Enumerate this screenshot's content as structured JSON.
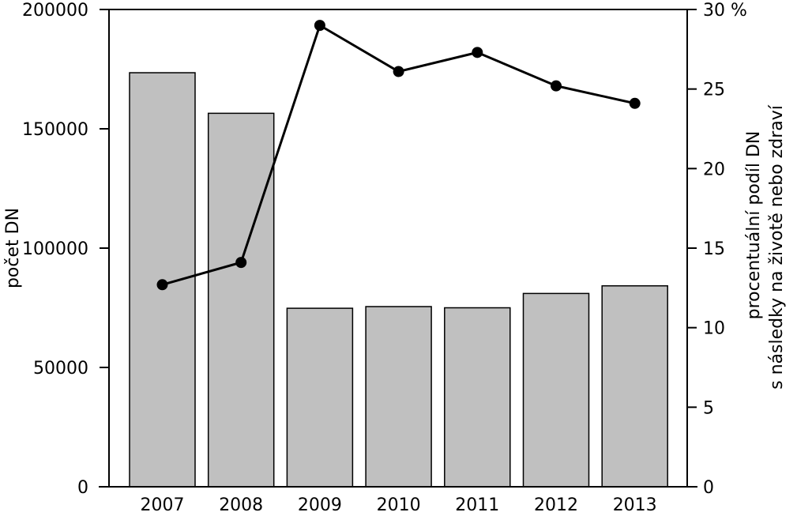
{
  "chart_data": {
    "type": "bar",
    "categories": [
      "2007",
      "2008",
      "2009",
      "2010",
      "2011",
      "2012",
      "2013"
    ],
    "series": [
      {
        "type": "bar",
        "axis": "left",
        "values": [
          173500,
          156500,
          74800,
          75500,
          75000,
          81000,
          84200
        ],
        "color": "#c0c0c0"
      },
      {
        "type": "line",
        "axis": "right",
        "values": [
          12.7,
          14.1,
          29.0,
          26.1,
          27.3,
          25.2,
          24.1
        ],
        "color": "#000000"
      }
    ],
    "ylabel": "počet DN",
    "ylabel_right_lines": [
      "procentuální podíl DN",
      "s následky na životě nebo zdraví"
    ],
    "ylim": [
      0,
      200000
    ],
    "ylim_right": [
      0,
      30
    ],
    "yticks": [
      "0",
      "50000",
      "100000",
      "150000",
      "200000"
    ],
    "yticks_right": [
      "0",
      "5",
      "10",
      "15",
      "20",
      "25",
      "30 %"
    ],
    "grid": false,
    "legend": "none"
  }
}
